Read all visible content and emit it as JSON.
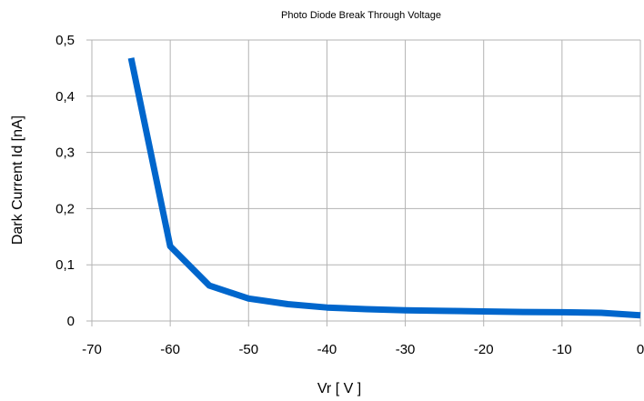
{
  "chart_data": {
    "type": "line",
    "title": "Photo Diode Break Through Voltage",
    "xlabel": "Vr [ V ]",
    "ylabel": "Dark Current Id [nA]",
    "xlim": [
      -70,
      0
    ],
    "ylim": [
      0,
      0.5
    ],
    "x_ticks": [
      -70,
      -60,
      -50,
      -40,
      -30,
      -20,
      -10,
      0
    ],
    "x_tick_labels": [
      "-70",
      "-60",
      "-50",
      "-40",
      "-30",
      "-20",
      "-10",
      "0"
    ],
    "y_ticks": [
      0,
      0.1,
      0.2,
      0.3,
      0.4,
      0.5
    ],
    "y_tick_labels": [
      "0",
      "0,1",
      "0,2",
      "0,3",
      "0,4",
      "0,5"
    ],
    "grid": true,
    "series": [
      {
        "x": [
          -65,
          -60,
          -55,
          -50,
          -45,
          -40,
          -35,
          -30,
          -25,
          -20,
          -15,
          -10,
          -5,
          0
        ],
        "y": [
          0.468,
          0.133,
          0.063,
          0.04,
          0.03,
          0.024,
          0.021,
          0.019,
          0.018,
          0.017,
          0.016,
          0.0155,
          0.0145,
          0.01
        ],
        "color": "#0066cc"
      }
    ]
  }
}
